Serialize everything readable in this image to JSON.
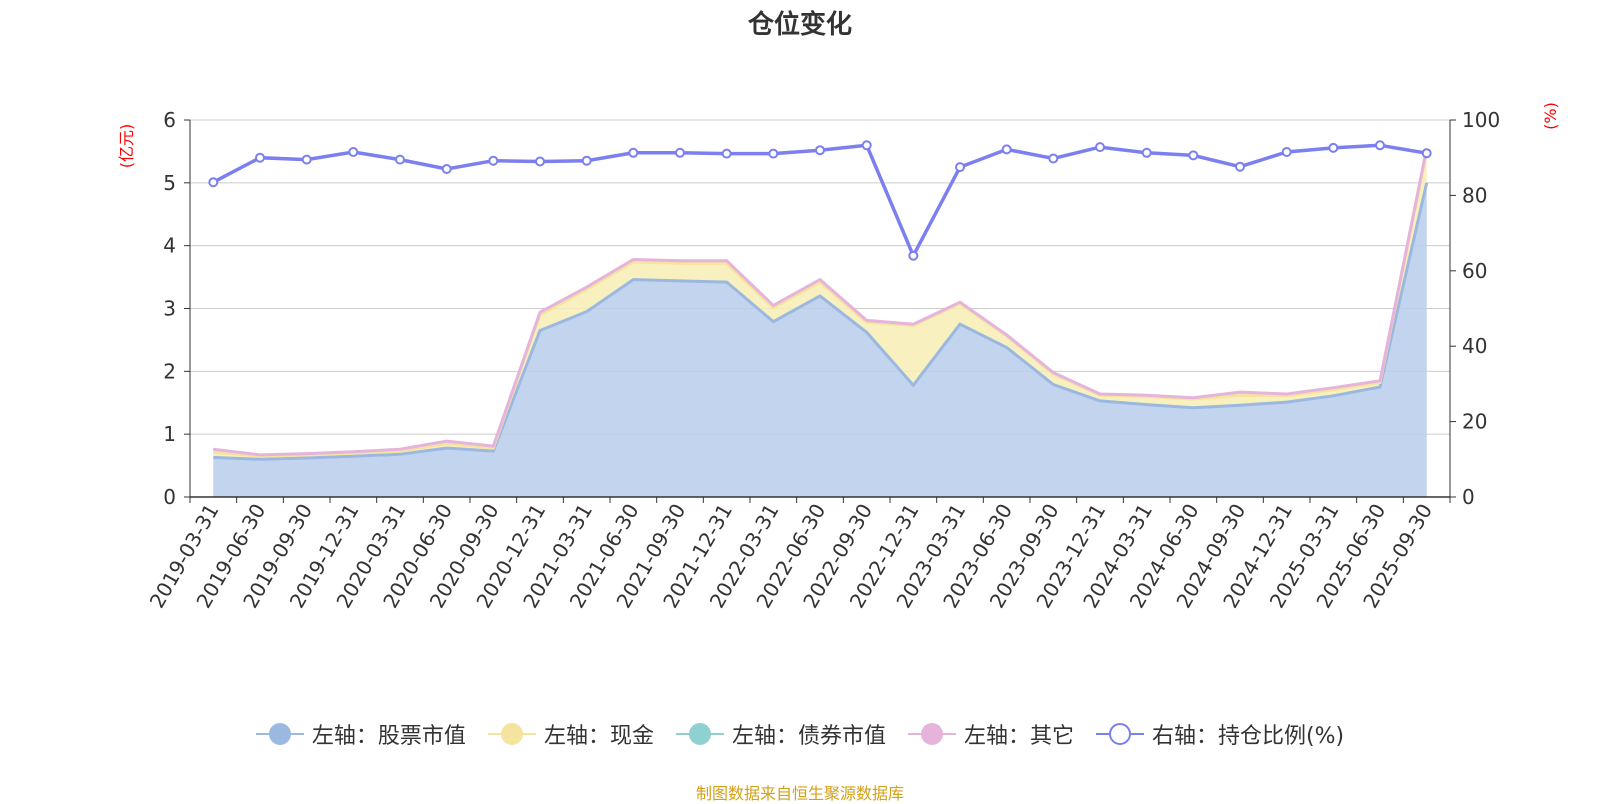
{
  "chart_data": {
    "type": "area",
    "title": "仓位变化",
    "x": [
      "2019-03-31",
      "2019-06-30",
      "2019-09-30",
      "2019-12-31",
      "2020-03-31",
      "2020-06-30",
      "2020-09-30",
      "2020-12-31",
      "2021-03-31",
      "2021-06-30",
      "2021-09-30",
      "2021-12-31",
      "2022-03-31",
      "2022-06-30",
      "2022-09-30",
      "2022-12-31",
      "2023-03-31",
      "2023-06-30",
      "2023-09-30",
      "2023-12-31",
      "2024-03-31",
      "2024-06-30",
      "2024-09-30",
      "2024-12-31",
      "2025-03-31",
      "2025-06-30",
      "2025-09-30"
    ],
    "y_left": {
      "label": "(亿元)",
      "ylim": [
        0,
        6
      ],
      "ticks": [
        "0",
        "1",
        "2",
        "3",
        "4",
        "5",
        "6"
      ]
    },
    "y_right": {
      "label": "(%)",
      "ylim": [
        0,
        100
      ],
      "ticks": [
        "0",
        "20",
        "40",
        "60",
        "80",
        "100"
      ]
    },
    "grid": true,
    "legend_position": "bottom",
    "series": [
      {
        "name": "左轴：股票市值",
        "axis": "left",
        "kind": "area",
        "color": "#9bb8e0",
        "fill": "#b8cceb",
        "values": [
          0.63,
          0.6,
          0.62,
          0.65,
          0.68,
          0.78,
          0.73,
          2.65,
          2.95,
          3.46,
          3.44,
          3.42,
          2.79,
          3.2,
          2.62,
          1.78,
          2.75,
          2.38,
          1.79,
          1.53,
          1.47,
          1.42,
          1.46,
          1.51,
          1.61,
          1.75,
          5.0
        ]
      },
      {
        "name": "左轴：现金",
        "axis": "left",
        "kind": "area",
        "color": "#f5e3a0",
        "fill": "#f8edb5",
        "values": [
          0.08,
          0.05,
          0.05,
          0.05,
          0.05,
          0.07,
          0.05,
          0.25,
          0.35,
          0.28,
          0.28,
          0.3,
          0.22,
          0.22,
          0.16,
          0.95,
          0.33,
          0.18,
          0.17,
          0.09,
          0.13,
          0.14,
          0.16,
          0.1,
          0.1,
          0.07,
          0.5
        ]
      },
      {
        "name": "左轴：债券市值",
        "axis": "left",
        "kind": "area",
        "color": "#8fd0d0",
        "fill": "#b5e3e3",
        "values": [
          0,
          0,
          0,
          0,
          0,
          0,
          0,
          0,
          0,
          0,
          0,
          0,
          0,
          0,
          0,
          0,
          0,
          0,
          0,
          0,
          0,
          0,
          0,
          0,
          0,
          0,
          0
        ]
      },
      {
        "name": "左轴：其它",
        "axis": "left",
        "kind": "area",
        "color": "#e6b3da",
        "fill": "#eeccea",
        "values": [
          0.05,
          0.02,
          0.02,
          0.02,
          0.03,
          0.04,
          0.03,
          0.04,
          0.04,
          0.04,
          0.04,
          0.04,
          0.04,
          0.04,
          0.03,
          0.02,
          0.02,
          0.02,
          0.02,
          0.02,
          0.02,
          0.02,
          0.05,
          0.03,
          0.03,
          0.03,
          0.05
        ]
      },
      {
        "name": "右轴：持仓比例(%)",
        "axis": "right",
        "kind": "line",
        "color": "#7b7ff0",
        "values": [
          83.5,
          90.0,
          89.5,
          91.5,
          89.5,
          87.0,
          89.2,
          89.0,
          89.2,
          91.3,
          91.3,
          91.1,
          91.1,
          92.0,
          93.3,
          64.0,
          87.5,
          92.2,
          89.8,
          92.8,
          91.3,
          90.6,
          87.6,
          91.5,
          92.6,
          93.3,
          91.2
        ]
      }
    ]
  },
  "source_note": "制图数据来自恒生聚源数据库"
}
